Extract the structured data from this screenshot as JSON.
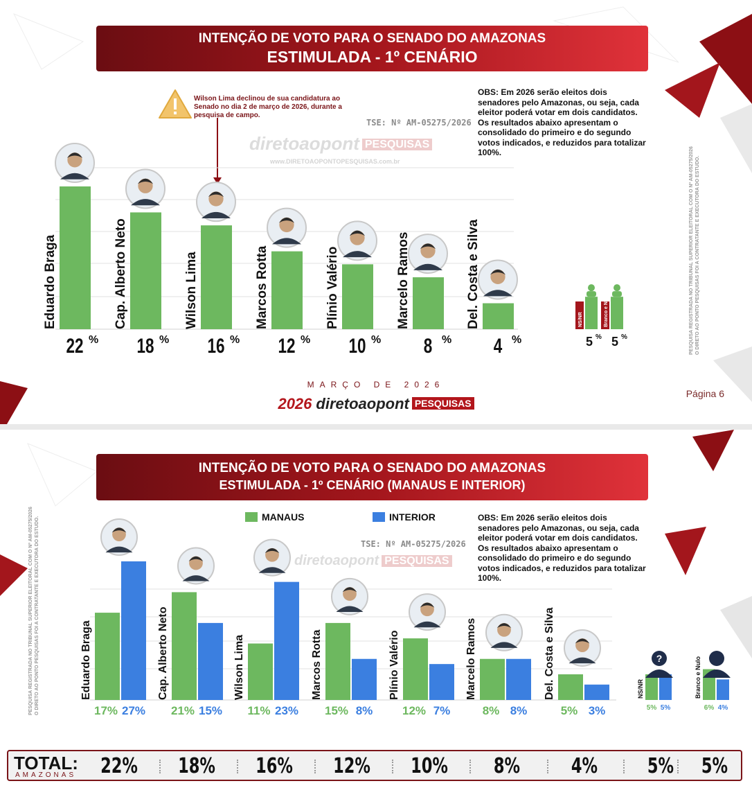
{
  "slide1": {
    "title_line1": "INTENÇÃO DE VOTO PARA O SENADO DO AMAZONAS",
    "title_line2": "ESTIMULADA - 1º CENÁRIO",
    "note": "Wilson Lima declinou de sua candidatura ao Senado no dia 2 de março de 2026, durante a pesquisa de campo.",
    "obs": "OBS: Em 2026 serão eleitos dois senadores pelo Amazonas, ou seja, cada eleitor poderá votar em dois candidatos. Os resultados abaixo apresentam o consolidado do primeiro e do segundo votos indicados, e reduzidos para totalizar 100%.",
    "tse": "TSE: Nº AM-05275/2026",
    "watermark": "diretoaopont",
    "watermark_badge": "PESQUISAS",
    "watermark_url": "www.DIRETOAOPONTOPESQUISAS.com.br",
    "side_text_1": "PESQUISA REGISTRADA NO TRIBUNAL SUPERIOR ELEITORAL COM O Nº AM-05275/2026",
    "side_text_2": "O DIRETO AO PONTO PESQUISAS FOI A CONTRATANTE E EXECUTORA DO ESTUDO.",
    "month": "MARÇO DE 2026",
    "footer_year": "2026",
    "footer_brand": "diretoaopont",
    "footer_badge": "PESQUISAS",
    "page": "Página 6"
  },
  "slide2": {
    "title_line1": "INTENÇÃO DE VOTO PARA O SENADO DO AMAZONAS",
    "title_line2": "ESTIMULADA - 1º CENÁRIO (MANAUS E INTERIOR)",
    "legend_manaus": "MANAUS",
    "legend_interior": "INTERIOR",
    "obs": "OBS: Em 2026 serão eleitos dois senadores pelo Amazonas, ou seja, cada eleitor poderá votar em dois candidatos. Os resultados abaixo apresentam o consolidado do primeiro e do segundo votos indicados, e reduzidos para totalizar 100%.",
    "tse": "TSE: Nº AM-05275/2026",
    "total_label": "TOTAL:",
    "total_sub": "AMAZONAS",
    "totals": [
      "22%",
      "18%",
      "16%",
      "12%",
      "10%",
      "8%",
      "4%",
      "5%",
      "5%"
    ]
  },
  "colors": {
    "manaus": "#6db85f",
    "interior": "#3b7fe0",
    "accent": "#a3161c"
  },
  "chart_data": [
    {
      "type": "bar",
      "categories": [
        "Eduardo Braga",
        "Cap. Alberto Neto",
        "Wilson Lima",
        "Marcos Rotta",
        "Plínio Valério",
        "Marcelo Ramos",
        "Del. Costa e Silva",
        "NS/NR",
        "Branco e Nulo"
      ],
      "values": [
        22,
        18,
        16,
        12,
        10,
        8,
        4,
        5,
        5
      ],
      "title": "INTENÇÃO DE VOTO PARA O SENADO DO AMAZONAS - ESTIMULADA - 1º CENÁRIO",
      "unit": "%"
    },
    {
      "type": "bar",
      "categories": [
        "Eduardo Braga",
        "Cap. Alberto Neto",
        "Wilson  Lima",
        "Marcos Rotta",
        "Plínio Valério",
        "Marcelo Ramos",
        "Del. Costa e Silva",
        "NS/NR",
        "Branco e Nulo"
      ],
      "series": [
        {
          "name": "MANAUS",
          "values": [
            17,
            21,
            11,
            15,
            12,
            8,
            5,
            5,
            6
          ]
        },
        {
          "name": "INTERIOR",
          "values": [
            27,
            15,
            23,
            8,
            7,
            8,
            3,
            5,
            4
          ]
        }
      ],
      "title": "INTENÇÃO DE VOTO PARA O SENADO DO AMAZONAS - ESTIMULADA - 1º CENÁRIO (MANAUS E INTERIOR)",
      "unit": "%"
    }
  ]
}
